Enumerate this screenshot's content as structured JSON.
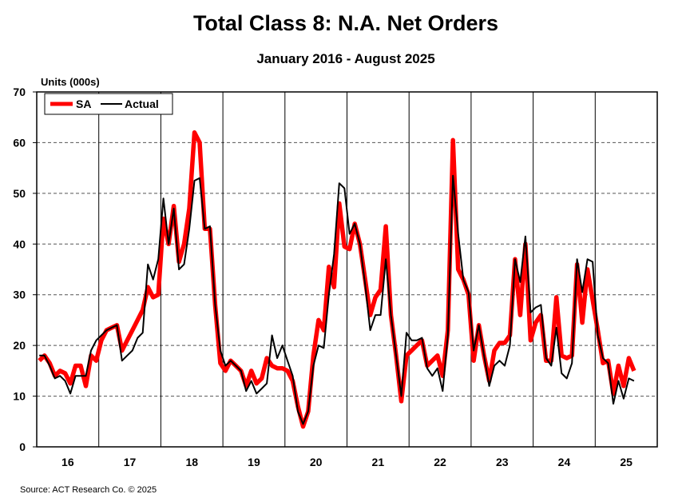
{
  "chart_data": {
    "type": "line",
    "title": "Total Class 8: N.A. Net Orders",
    "subtitle": "January 2016 - August 2025",
    "ylabel": "Units (000s)",
    "xlabel": "",
    "ylim": [
      0,
      70
    ],
    "yticks": [
      0,
      10,
      20,
      30,
      40,
      50,
      60,
      70
    ],
    "x_tick_labels": [
      "16",
      "17",
      "18",
      "19",
      "20",
      "21",
      "22",
      "23",
      "24",
      "25"
    ],
    "x_start": "2016-01",
    "x_end": "2025-08",
    "grid": "horizontal dashed, vertical year separators",
    "legend_position": "top-left",
    "source": "Source: ACT Research Co. © 2025",
    "series": [
      {
        "name": "SA",
        "color": "#ff0000",
        "values": [
          17,
          18,
          16.5,
          14,
          15,
          14.5,
          12.5,
          16,
          16,
          12,
          18,
          17,
          21,
          23,
          23.5,
          24,
          19,
          21,
          23,
          25,
          27,
          31.5,
          29.5,
          30,
          45,
          40,
          47.5,
          36.5,
          40,
          47,
          62,
          60,
          43,
          43,
          28,
          16.5,
          15,
          17,
          16,
          15,
          12,
          15,
          12.5,
          13.5,
          17.5,
          16,
          15.5,
          15.5,
          15,
          13,
          8,
          4,
          7,
          18,
          25,
          23,
          35.5,
          31.5,
          48,
          39.5,
          39,
          44,
          40,
          33,
          26,
          29.5,
          31,
          43.5,
          26,
          18,
          9,
          18,
          19,
          20,
          21,
          16,
          17,
          18,
          14,
          23,
          60.5,
          35,
          33,
          30,
          17,
          24,
          18,
          13,
          19,
          20.5,
          20.5,
          22,
          37,
          26,
          40,
          21,
          24.5,
          26,
          17,
          17,
          29.5,
          18,
          17.5,
          18,
          36,
          24.5,
          35,
          29,
          23,
          16.5,
          17,
          10.5,
          16,
          12,
          17.5,
          15
        ]
      },
      {
        "name": "Actual",
        "color": "#000000",
        "values": [
          18,
          18,
          16,
          13.5,
          14,
          13,
          10.5,
          14,
          14,
          14,
          19,
          21,
          22,
          23,
          23.5,
          24,
          17,
          18,
          19,
          21.5,
          22.5,
          36,
          33,
          37,
          49,
          40,
          47,
          35,
          36,
          43,
          52.5,
          53,
          43,
          43.5,
          28,
          19,
          16,
          17,
          16,
          15,
          11,
          13,
          10.5,
          11.5,
          12.5,
          22,
          17.5,
          20,
          17,
          14,
          7,
          4.5,
          7,
          16,
          20,
          19.5,
          30,
          38,
          52,
          51,
          42,
          44,
          40,
          32,
          23,
          26,
          26,
          37,
          26,
          18,
          10,
          22.5,
          21,
          21,
          21.5,
          15.5,
          14,
          15.5,
          11,
          22,
          53.5,
          42,
          33,
          30.5,
          19,
          24,
          18,
          12,
          16,
          17,
          16,
          20,
          37,
          32.5,
          41.5,
          26.5,
          27.5,
          28,
          17.5,
          16,
          23.5,
          14.5,
          13.5,
          16.5,
          37,
          30.5,
          37,
          36.5,
          22,
          17.5,
          16.5,
          8.5,
          13,
          9.5,
          13.5,
          13
        ]
      }
    ]
  }
}
